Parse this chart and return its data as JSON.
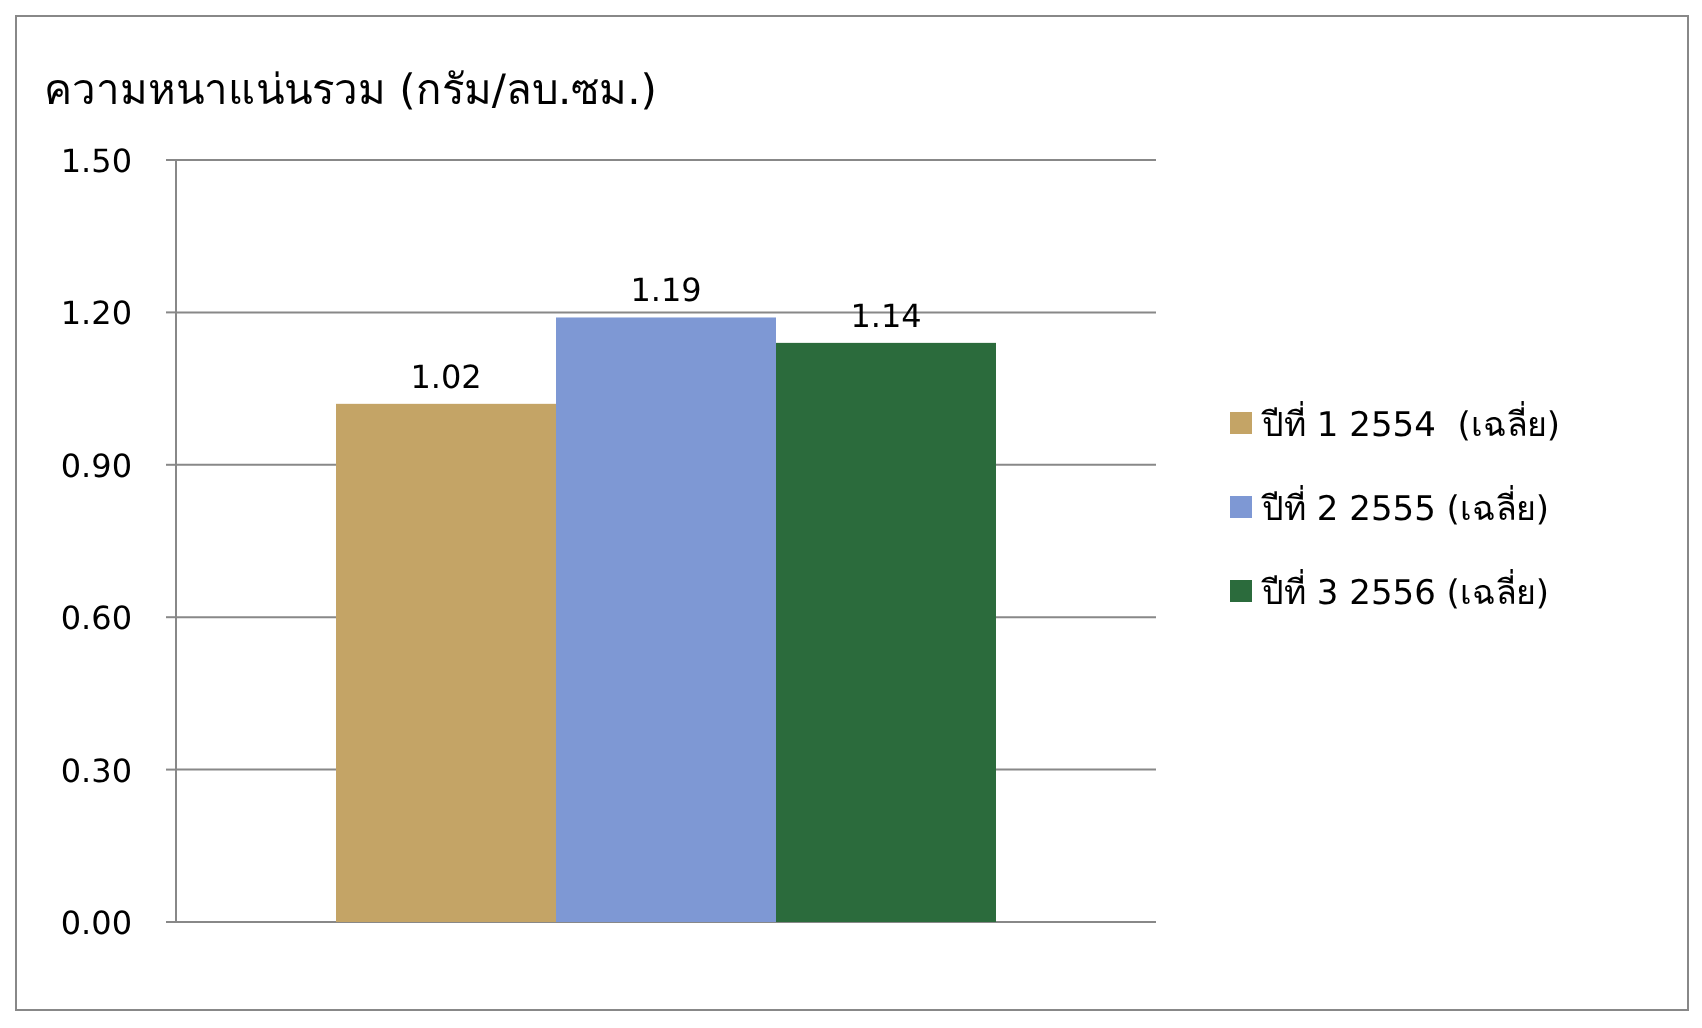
{
  "chart_data": {
    "type": "bar",
    "title": "ความหนาแน่นรวม (กรัม/ลบ.ซม.)",
    "categories": [
      null
    ],
    "series": [
      {
        "name": "ปีที่ 1 2554  (เฉลี่ย)",
        "color": "#c4a466",
        "values": [
          1.02
        ]
      },
      {
        "name": "ปีที่ 2 2555 (เฉลี่ย)",
        "color": "#7e98d4",
        "values": [
          1.19
        ]
      },
      {
        "name": "ปีที่ 3 2556 (เฉลี่ย)",
        "color": "#2b6b3c",
        "values": [
          1.14
        ]
      }
    ],
    "ylim": [
      0,
      1.5
    ],
    "yticks": [
      {
        "value": 0,
        "label": "0.00"
      },
      {
        "value": 0.3,
        "label": "0.30"
      },
      {
        "value": 0.6,
        "label": "0.60"
      },
      {
        "value": 0.9,
        "label": "0.90"
      },
      {
        "value": 1.2,
        "label": "1.20"
      },
      {
        "value": 1.5,
        "label": "1.50"
      }
    ],
    "grid": "y",
    "legend": "right",
    "data_labels": true
  }
}
